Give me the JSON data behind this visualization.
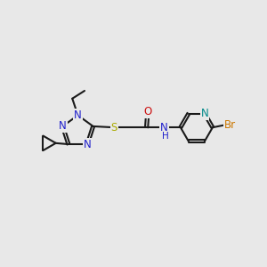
{
  "bg_color": "#e8e8e8",
  "bond_color": "#1a1a1a",
  "N_color": "#2020cc",
  "O_color": "#cc1010",
  "S_color": "#aaaa00",
  "Br_color": "#cc7700",
  "teal_color": "#008888",
  "line_width": 1.5,
  "font_size": 8.5,
  "fig_size": [
    3.0,
    3.0
  ],
  "xlim": [
    0,
    12
  ],
  "ylim": [
    1,
    9
  ]
}
